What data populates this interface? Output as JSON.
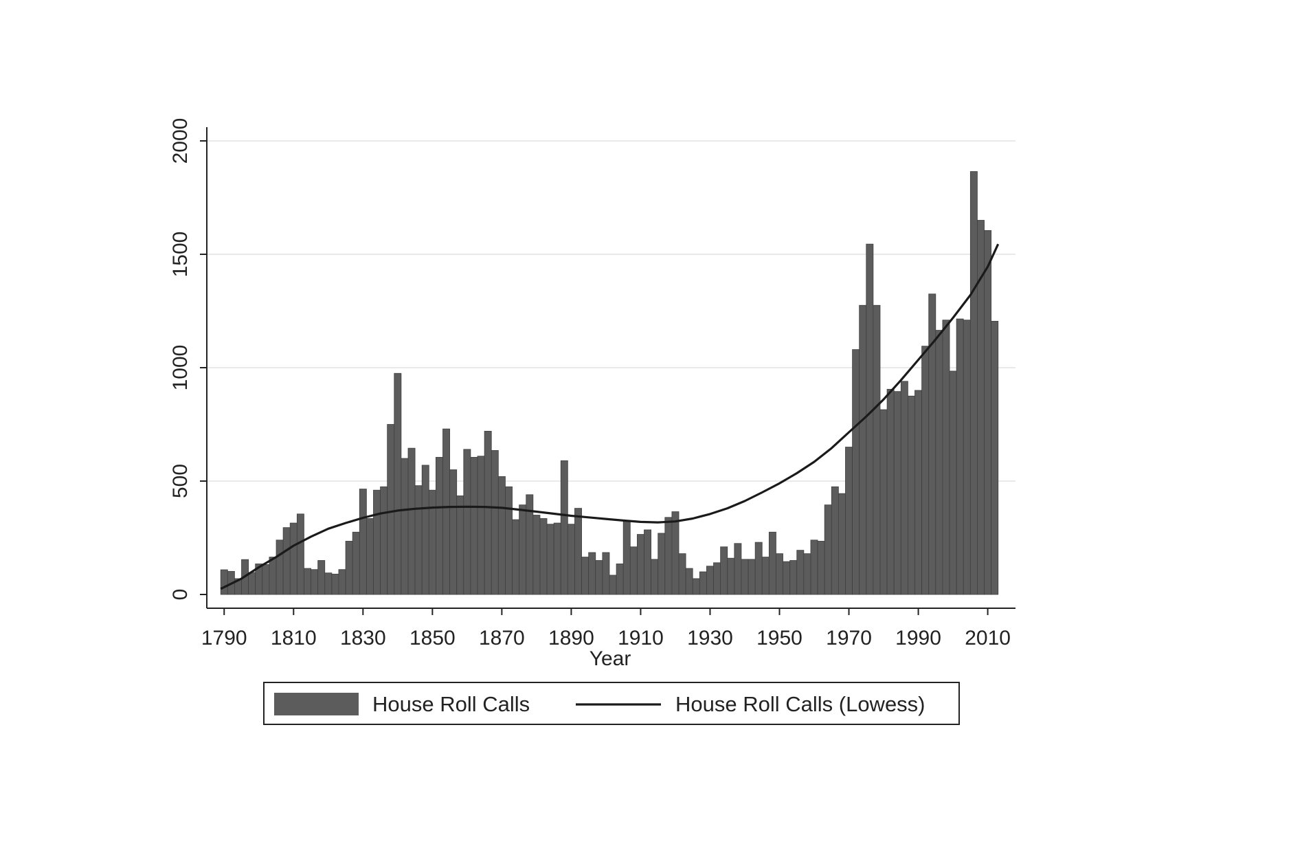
{
  "chart_data": {
    "type": "bar",
    "title": "",
    "xlabel": "Year",
    "ylabel": "",
    "xlim": [
      1785,
      2018
    ],
    "ylim": [
      0,
      2000
    ],
    "x_ticks": [
      1790,
      1810,
      1830,
      1850,
      1870,
      1890,
      1910,
      1930,
      1950,
      1970,
      1990,
      2010
    ],
    "y_ticks": [
      0,
      500,
      1000,
      1500,
      2000
    ],
    "grid": true,
    "bar_color": "#5c5c5c",
    "line_color": "#1a1a1a",
    "legend": {
      "placement": "bottom",
      "items": [
        {
          "label": "House Roll Calls",
          "kind": "bar"
        },
        {
          "label": "House Roll Calls (Lowess)",
          "kind": "line"
        }
      ]
    },
    "bar_width_years": 2,
    "series": [
      {
        "name": "House Roll Calls",
        "kind": "bar",
        "x": [
          1789,
          1791,
          1793,
          1795,
          1797,
          1799,
          1801,
          1803,
          1805,
          1807,
          1809,
          1811,
          1813,
          1815,
          1817,
          1819,
          1821,
          1823,
          1825,
          1827,
          1829,
          1831,
          1833,
          1835,
          1837,
          1839,
          1841,
          1843,
          1845,
          1847,
          1849,
          1851,
          1853,
          1855,
          1857,
          1859,
          1861,
          1863,
          1865,
          1867,
          1869,
          1871,
          1873,
          1875,
          1877,
          1879,
          1881,
          1883,
          1885,
          1887,
          1889,
          1891,
          1893,
          1895,
          1897,
          1899,
          1901,
          1903,
          1905,
          1907,
          1909,
          1911,
          1913,
          1915,
          1917,
          1919,
          1921,
          1923,
          1925,
          1927,
          1929,
          1931,
          1933,
          1935,
          1937,
          1939,
          1941,
          1943,
          1945,
          1947,
          1949,
          1951,
          1953,
          1955,
          1957,
          1959,
          1961,
          1963,
          1965,
          1967,
          1969,
          1971,
          1973,
          1975,
          1977,
          1979,
          1981,
          1983,
          1985,
          1987,
          1989,
          1991,
          1993,
          1995,
          1997,
          1999,
          2001,
          2003,
          2005,
          2007,
          2009,
          2011
        ],
        "values": [
          109,
          102,
          70,
          154,
          97,
          135,
          132,
          165,
          240,
          295,
          315,
          355,
          115,
          110,
          150,
          95,
          90,
          110,
          235,
          275,
          465,
          335,
          460,
          475,
          750,
          975,
          600,
          645,
          480,
          570,
          460,
          605,
          730,
          550,
          435,
          640,
          605,
          610,
          720,
          635,
          520,
          475,
          330,
          395,
          440,
          350,
          335,
          310,
          315,
          590,
          310,
          380,
          165,
          185,
          150,
          185,
          85,
          135,
          325,
          210,
          265,
          285,
          155,
          270,
          340,
          365,
          180,
          115,
          70,
          100,
          125,
          140,
          210,
          160,
          225,
          155,
          155,
          230,
          165,
          275,
          180,
          145,
          150,
          195,
          180,
          240,
          235,
          395,
          475,
          445,
          650,
          1080,
          1275,
          1545,
          1275,
          815,
          905,
          895,
          940,
          875,
          900,
          1095,
          1325,
          1165,
          1210,
          985,
          1215,
          1210,
          1865,
          1650,
          1605,
          1205
        ]
      },
      {
        "name": "House Roll Calls (Lowess)",
        "kind": "line",
        "x": [
          1789,
          1795,
          1800,
          1805,
          1810,
          1815,
          1820,
          1825,
          1830,
          1835,
          1840,
          1845,
          1850,
          1855,
          1860,
          1865,
          1870,
          1875,
          1880,
          1885,
          1890,
          1895,
          1900,
          1905,
          1910,
          1915,
          1920,
          1925,
          1930,
          1935,
          1940,
          1945,
          1950,
          1955,
          1960,
          1965,
          1970,
          1975,
          1980,
          1985,
          1990,
          1995,
          2000,
          2005,
          2010,
          2013
        ],
        "values": [
          25,
          70,
          120,
          165,
          215,
          255,
          290,
          315,
          338,
          357,
          370,
          378,
          383,
          386,
          387,
          386,
          382,
          374,
          365,
          356,
          347,
          340,
          333,
          326,
          320,
          318,
          322,
          335,
          355,
          380,
          412,
          450,
          490,
          535,
          585,
          645,
          715,
          785,
          860,
          945,
          1035,
          1125,
          1220,
          1320,
          1445,
          1545
        ]
      }
    ]
  }
}
